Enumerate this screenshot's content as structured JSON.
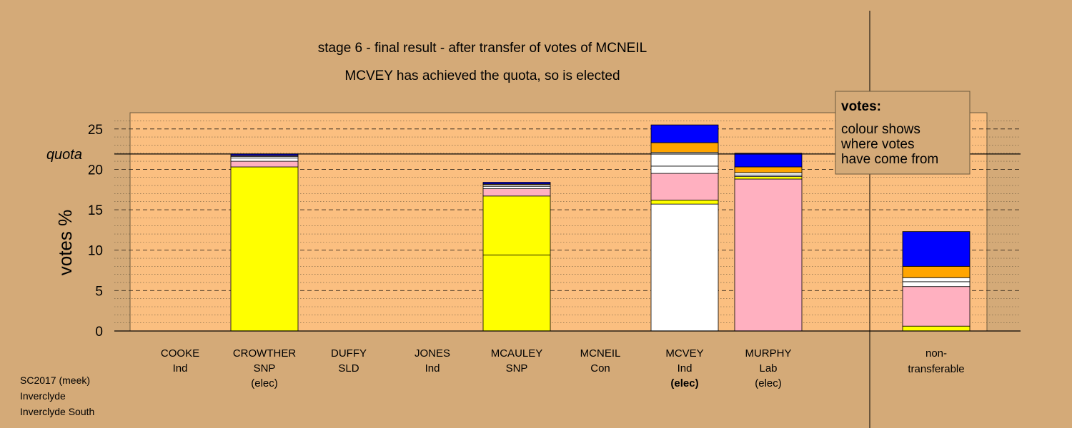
{
  "chart_data": {
    "type": "bar",
    "stacked": true,
    "title": "stage 6 - final result - after transfer of votes of MCNEIL",
    "subtitle": "MCVEY has achieved the quota, so is elected",
    "ylabel": "votes %",
    "ylim": [
      0,
      27
    ],
    "yticks": [
      0,
      5,
      10,
      15,
      20,
      25
    ],
    "quota": {
      "label": "quota",
      "value": 21.9
    },
    "legend": {
      "title": "votes:",
      "lines": [
        "colour shows",
        "where votes",
        "have come from"
      ],
      "placement": "top-right"
    },
    "grid": true,
    "categories": [
      {
        "name": "COOKE",
        "party": "Ind",
        "status": ""
      },
      {
        "name": "CROWTHER",
        "party": "SNP",
        "status": "(elec)"
      },
      {
        "name": "DUFFY",
        "party": "SLD",
        "status": ""
      },
      {
        "name": "JONES",
        "party": "Ind",
        "status": ""
      },
      {
        "name": "MCAULEY",
        "party": "SNP",
        "status": ""
      },
      {
        "name": "MCNEIL",
        "party": "Con",
        "status": ""
      },
      {
        "name": "MCVEY",
        "party": "Ind",
        "status": "(elec)",
        "status_bold": true
      },
      {
        "name": "MURPHY",
        "party": "Lab",
        "status": "(elec)"
      }
    ],
    "nontransferable_label": [
      "non-",
      "transferable"
    ],
    "stacks": [
      {
        "category": "COOKE",
        "segments": []
      },
      {
        "category": "CROWTHER",
        "segments": [
          {
            "color": "#ffff00",
            "value": 20.3
          },
          {
            "color": "#ffb0c0",
            "value": 0.7
          },
          {
            "color": "#ffffff",
            "value": 0.4
          },
          {
            "color": "#ffffff",
            "value": 0.2
          },
          {
            "color": "#ffa500",
            "value": 0.1
          },
          {
            "color": "#0000ff",
            "value": 0.2
          }
        ]
      },
      {
        "category": "DUFFY",
        "segments": []
      },
      {
        "category": "JONES",
        "segments": []
      },
      {
        "category": "MCAULEY",
        "segments": [
          {
            "color": "#ffff00",
            "value": 9.4
          },
          {
            "color": "#ffff00",
            "value": 7.3
          },
          {
            "color": "#ffb0c0",
            "value": 0.9
          },
          {
            "color": "#ffffff",
            "value": 0.3
          },
          {
            "color": "#ffffff",
            "value": 0.2
          },
          {
            "color": "#ffa500",
            "value": 0.1
          },
          {
            "color": "#0000ff",
            "value": 0.2
          }
        ]
      },
      {
        "category": "MCNEIL",
        "segments": []
      },
      {
        "category": "MCVEY",
        "segments": [
          {
            "color": "#ffffff",
            "value": 15.7
          },
          {
            "color": "#ffff00",
            "value": 0.5
          },
          {
            "color": "#ffb0c0",
            "value": 3.3
          },
          {
            "color": "#ffffff",
            "value": 0.9
          },
          {
            "color": "#ffffff",
            "value": 1.7
          },
          {
            "color": "#ffa500",
            "value": 1.2
          },
          {
            "color": "#0000ff",
            "value": 2.2
          }
        ]
      },
      {
        "category": "MURPHY",
        "segments": [
          {
            "color": "#ffb0c0",
            "value": 18.8
          },
          {
            "color": "#ffff00",
            "value": 0.3
          },
          {
            "color": "#ffffff",
            "value": 0.2
          },
          {
            "color": "#ffffff",
            "value": 0.3
          },
          {
            "color": "#ffa500",
            "value": 0.7
          },
          {
            "color": "#0000ff",
            "value": 1.7
          }
        ]
      },
      {
        "category": "non-transferable",
        "segments": [
          {
            "color": "#ffff00",
            "value": 0.6
          },
          {
            "color": "#ffb0c0",
            "value": 4.9
          },
          {
            "color": "#ffffff",
            "value": 0.6
          },
          {
            "color": "#ffffff",
            "value": 0.5
          },
          {
            "color": "#ffa500",
            "value": 1.4
          },
          {
            "color": "#0000ff",
            "value": 4.3
          }
        ]
      }
    ]
  },
  "footer": [
    "SC2017 (meek)",
    "Inverclyde",
    "Inverclyde South"
  ],
  "colors": {
    "background": "#d4aa78",
    "plot_area": "#fbbf80",
    "legend_box": "#d4aa78"
  }
}
